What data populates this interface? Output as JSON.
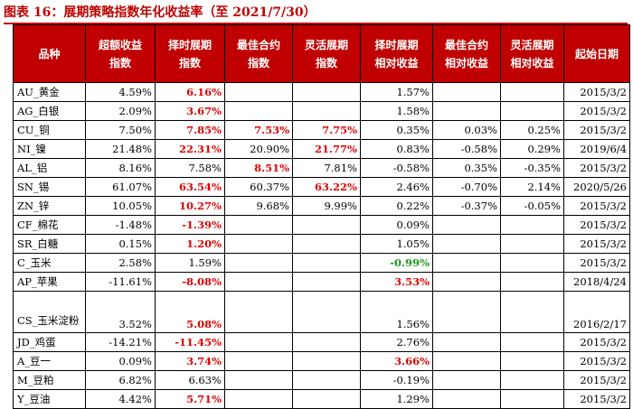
{
  "title": "图表 16：展期策略指数年化收益率（至 2021/7/30）",
  "colors": {
    "header_bg": "#c00000",
    "header_text": "#ffffff",
    "highlight_red": "#e00000",
    "highlight_green": "#1a9a1a",
    "normal_text": "#000000"
  },
  "headers": [
    "品种",
    "超额收益\n指数",
    "择时展期\n指数",
    "最佳合约\n指数",
    "灵活展期\n指数",
    "择时展期\n相对收益",
    "最佳合约\n相对收益",
    "灵活展期\n相对收益",
    "起始日期"
  ],
  "rows": [
    {
      "name": "AU_黄金",
      "cells": [
        "4.59%",
        "6.16%",
        "",
        "",
        "1.57%",
        "",
        "",
        "2015/3/2"
      ],
      "style": [
        "",
        "red",
        "",
        "",
        "",
        "",
        "",
        ""
      ]
    },
    {
      "name": "AG_白银",
      "cells": [
        "2.09%",
        "3.67%",
        "",
        "",
        "1.58%",
        "",
        "",
        "2015/3/2"
      ],
      "style": [
        "",
        "red",
        "",
        "",
        "",
        "",
        "",
        ""
      ]
    },
    {
      "name": "CU_铜",
      "cells": [
        "7.50%",
        "7.85%",
        "7.53%",
        "7.75%",
        "0.35%",
        "0.03%",
        "0.25%",
        "2015/3/2"
      ],
      "style": [
        "",
        "red",
        "red",
        "red",
        "",
        "",
        "",
        ""
      ]
    },
    {
      "name": "NI_镍",
      "cells": [
        "21.48%",
        "22.31%",
        "20.90%",
        "21.77%",
        "0.83%",
        "-0.58%",
        "0.29%",
        "2019/6/4"
      ],
      "style": [
        "",
        "red",
        "",
        "red",
        "",
        "",
        "",
        ""
      ]
    },
    {
      "name": "AL_铝",
      "cells": [
        "8.16%",
        "7.58%",
        "8.51%",
        "7.81%",
        "-0.58%",
        "0.35%",
        "-0.35%",
        "2015/3/2"
      ],
      "style": [
        "",
        "",
        "red",
        "",
        "",
        "",
        "",
        ""
      ]
    },
    {
      "name": "SN_锡",
      "cells": [
        "61.07%",
        "63.54%",
        "60.37%",
        "63.22%",
        "2.46%",
        "-0.70%",
        "2.14%",
        "2020/5/26"
      ],
      "style": [
        "",
        "red",
        "",
        "red",
        "",
        "",
        "",
        ""
      ]
    },
    {
      "name": "ZN_锌",
      "cells": [
        "10.05%",
        "10.27%",
        "9.68%",
        "9.99%",
        "0.22%",
        "-0.37%",
        "-0.05%",
        "2015/3/2"
      ],
      "style": [
        "",
        "red",
        "",
        "",
        "",
        "",
        "",
        ""
      ]
    },
    {
      "name": "CF_棉花",
      "cells": [
        "-1.48%",
        "-1.39%",
        "",
        "",
        "0.09%",
        "",
        "",
        "2015/3/2"
      ],
      "style": [
        "",
        "red",
        "",
        "",
        "",
        "",
        "",
        ""
      ]
    },
    {
      "name": "SR_白糖",
      "cells": [
        "0.15%",
        "1.20%",
        "",
        "",
        "1.05%",
        "",
        "",
        "2015/3/2"
      ],
      "style": [
        "",
        "red",
        "",
        "",
        "",
        "",
        "",
        ""
      ]
    },
    {
      "name": "C_玉米",
      "cells": [
        "2.58%",
        "1.59%",
        "",
        "",
        "-0.99%",
        "",
        "",
        "2015/3/2"
      ],
      "style": [
        "",
        "",
        "",
        "",
        "green",
        "",
        "",
        ""
      ]
    },
    {
      "name": "AP_苹果",
      "cells": [
        "-11.61%",
        "-8.08%",
        "",
        "",
        "3.53%",
        "",
        "",
        "2018/4/24"
      ],
      "style": [
        "",
        "red",
        "",
        "",
        "red",
        "",
        "",
        ""
      ]
    },
    {
      "name": "CS_玉米淀粉",
      "cells": [
        "3.52%",
        "5.08%",
        "",
        "",
        "1.56%",
        "",
        "",
        "2016/2/17"
      ],
      "style": [
        "",
        "red",
        "",
        "",
        "",
        "",
        "",
        ""
      ],
      "tall": true
    },
    {
      "name": "JD_鸡蛋",
      "cells": [
        "-14.21%",
        "-11.45%",
        "",
        "",
        "2.76%",
        "",
        "",
        "2015/3/2"
      ],
      "style": [
        "",
        "red",
        "",
        "",
        "",
        "",
        "",
        ""
      ]
    },
    {
      "name": "A_豆一",
      "cells": [
        "0.09%",
        "3.74%",
        "",
        "",
        "3.66%",
        "",
        "",
        "2015/3/2"
      ],
      "style": [
        "",
        "red",
        "",
        "",
        "red",
        "",
        "",
        ""
      ]
    },
    {
      "name": "M_豆粕",
      "cells": [
        "6.82%",
        "6.63%",
        "",
        "",
        "-0.19%",
        "",
        "",
        "2015/3/2"
      ],
      "style": [
        "",
        "",
        "",
        "",
        "",
        "",
        "",
        ""
      ]
    },
    {
      "name": "Y_豆油",
      "cells": [
        "4.42%",
        "5.71%",
        "",
        "",
        "1.29%",
        "",
        "",
        "2015/3/2"
      ],
      "style": [
        "",
        "red",
        "",
        "",
        "",
        "",
        "",
        ""
      ]
    }
  ]
}
